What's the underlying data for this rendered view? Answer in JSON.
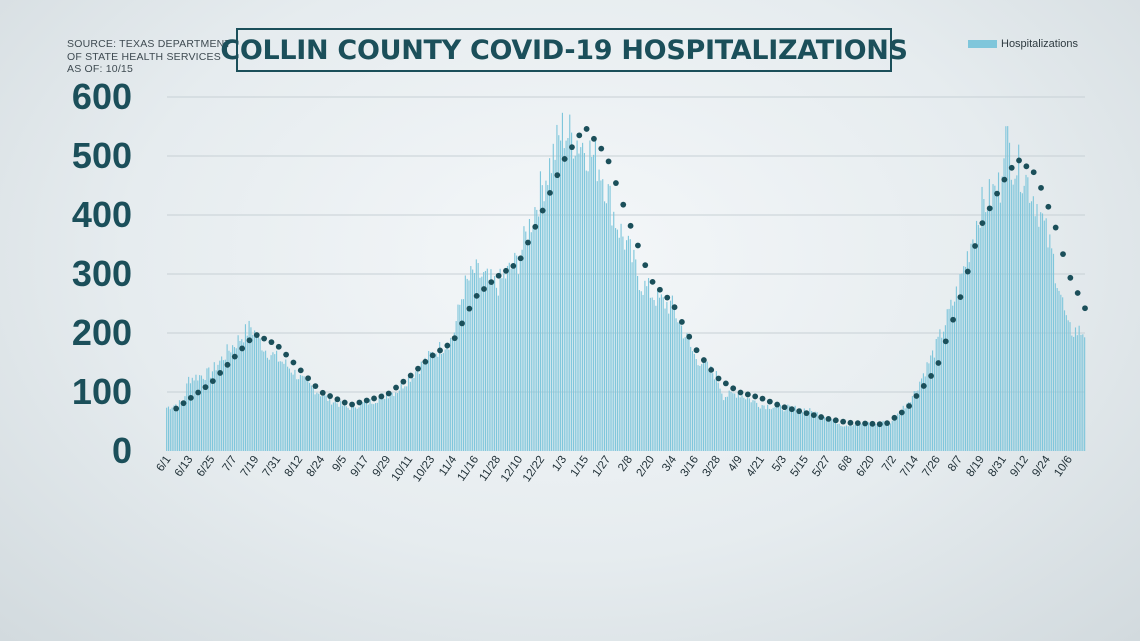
{
  "source_lines": [
    "SOURCE: TEXAS DEPARTMENT",
    "OF STATE HEALTH SERVICES",
    "AS OF: 10/15"
  ],
  "title": "COLLIN COUNTY COVID-19 HOSPITALIZATIONS",
  "legend": {
    "label": "Hospitalizations",
    "color": "#7fc6db"
  },
  "colors": {
    "bar": "#7fc6db",
    "trend": "#1b4f5a",
    "axis_text": "#1b4f5a",
    "grid": "#c7d0d5"
  },
  "chart_data": {
    "type": "bar",
    "title": "COLLIN COUNTY COVID-19 HOSPITALIZATIONS",
    "xlabel": "",
    "ylabel": "",
    "ylim": [
      0,
      600
    ],
    "yticks": [
      0,
      100,
      200,
      300,
      400,
      500,
      600
    ],
    "grid": true,
    "legend_position": "top-right",
    "x_start": "2020-06-01",
    "x_end": "2021-10-15",
    "x_tick_labels": [
      "6/1",
      "6/13",
      "6/25",
      "7/7",
      "7/19",
      "7/31",
      "8/12",
      "8/24",
      "9/5",
      "9/17",
      "9/29",
      "10/11",
      "10/23",
      "11/4",
      "11/16",
      "11/28",
      "12/10",
      "12/22",
      "1/3",
      "1/15",
      "1/27",
      "2/8",
      "2/20",
      "3/4",
      "3/16",
      "3/28",
      "4/9",
      "4/21",
      "5/3",
      "5/15",
      "5/27",
      "6/8",
      "6/20",
      "7/2",
      "7/14",
      "7/26",
      "8/7",
      "8/19",
      "8/31",
      "9/12",
      "9/24",
      "10/6"
    ],
    "series": [
      {
        "name": "Hospitalizations",
        "keypoints": [
          [
            "2020-06-01",
            75
          ],
          [
            "2020-06-10",
            85
          ],
          [
            "2020-06-13",
            125
          ],
          [
            "2020-06-25",
            135
          ],
          [
            "2020-07-05",
            175
          ],
          [
            "2020-07-17",
            215
          ],
          [
            "2020-07-25",
            175
          ],
          [
            "2020-08-05",
            150
          ],
          [
            "2020-08-15",
            120
          ],
          [
            "2020-08-28",
            90
          ],
          [
            "2020-09-08",
            75
          ],
          [
            "2020-09-20",
            85
          ],
          [
            "2020-10-05",
            105
          ],
          [
            "2020-10-23",
            165
          ],
          [
            "2020-11-04",
            195
          ],
          [
            "2020-11-10",
            280
          ],
          [
            "2020-11-16",
            310
          ],
          [
            "2020-11-28",
            285
          ],
          [
            "2020-12-10",
            330
          ],
          [
            "2020-12-22",
            450
          ],
          [
            "2021-01-03",
            555
          ],
          [
            "2021-01-15",
            530
          ],
          [
            "2021-01-24",
            490
          ],
          [
            "2021-02-01",
            400
          ],
          [
            "2021-02-08",
            350
          ],
          [
            "2021-02-15",
            290
          ],
          [
            "2021-02-25",
            260
          ],
          [
            "2021-03-04",
            250
          ],
          [
            "2021-03-16",
            165
          ],
          [
            "2021-03-28",
            130
          ],
          [
            "2021-04-01",
            95
          ],
          [
            "2021-04-09",
            100
          ],
          [
            "2021-04-21",
            80
          ],
          [
            "2021-05-03",
            75
          ],
          [
            "2021-05-15",
            72
          ],
          [
            "2021-05-27",
            60
          ],
          [
            "2021-06-05",
            45
          ],
          [
            "2021-06-20",
            48
          ],
          [
            "2021-07-02",
            50
          ],
          [
            "2021-07-14",
            100
          ],
          [
            "2021-07-26",
            180
          ],
          [
            "2021-08-07",
            280
          ],
          [
            "2021-08-19",
            420
          ],
          [
            "2021-08-30",
            460
          ],
          [
            "2021-09-01",
            550
          ],
          [
            "2021-09-06",
            500
          ],
          [
            "2021-09-12",
            480
          ],
          [
            "2021-09-20",
            420
          ],
          [
            "2021-09-28",
            330
          ],
          [
            "2021-10-06",
            210
          ],
          [
            "2021-10-15",
            205
          ]
        ]
      },
      {
        "name": "",
        "style": "dotted",
        "keypoints": [
          [
            "2020-06-06",
            72
          ],
          [
            "2020-06-25",
            115
          ],
          [
            "2020-07-19",
            198
          ],
          [
            "2020-07-31",
            180
          ],
          [
            "2020-08-12",
            140
          ],
          [
            "2020-08-24",
            100
          ],
          [
            "2020-09-09",
            78
          ],
          [
            "2020-09-29",
            95
          ],
          [
            "2020-10-11",
            125
          ],
          [
            "2020-10-23",
            160
          ],
          [
            "2020-11-04",
            185
          ],
          [
            "2020-11-16",
            260
          ],
          [
            "2020-11-28",
            295
          ],
          [
            "2020-12-10",
            320
          ],
          [
            "2020-12-22",
            400
          ],
          [
            "2021-01-03",
            490
          ],
          [
            "2021-01-15",
            550
          ],
          [
            "2021-01-27",
            500
          ],
          [
            "2021-02-08",
            390
          ],
          [
            "2021-02-20",
            290
          ],
          [
            "2021-03-04",
            250
          ],
          [
            "2021-03-16",
            175
          ],
          [
            "2021-03-28",
            125
          ],
          [
            "2021-04-09",
            100
          ],
          [
            "2021-04-21",
            90
          ],
          [
            "2021-05-03",
            75
          ],
          [
            "2021-05-15",
            65
          ],
          [
            "2021-05-27",
            55
          ],
          [
            "2021-06-08",
            48
          ],
          [
            "2021-06-28",
            45
          ],
          [
            "2021-07-10",
            72
          ],
          [
            "2021-07-26",
            140
          ],
          [
            "2021-08-07",
            250
          ],
          [
            "2021-08-19",
            380
          ],
          [
            "2021-08-31",
            455
          ],
          [
            "2021-09-08",
            495
          ],
          [
            "2021-09-18",
            470
          ],
          [
            "2021-09-28",
            390
          ],
          [
            "2021-10-06",
            300
          ],
          [
            "2021-10-15",
            242
          ]
        ]
      }
    ]
  }
}
